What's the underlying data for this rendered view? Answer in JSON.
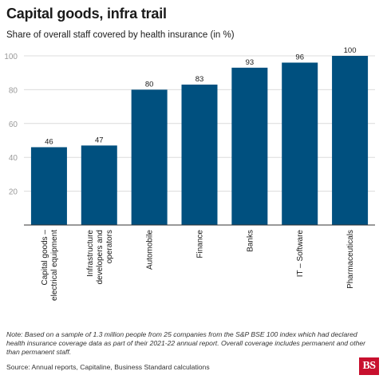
{
  "chart_data": {
    "type": "bar",
    "title": "Capital goods, infra trail",
    "subtitle": "Share of overall staff covered by health insurance (in %)",
    "categories": [
      [
        "Capital goods –",
        "electrical equipment"
      ],
      [
        "Infrastructure",
        "developers and",
        "operators"
      ],
      [
        "Automobile"
      ],
      [
        "Finance"
      ],
      [
        "Banks"
      ],
      [
        "IT – Software"
      ],
      [
        "Pharmaceuticals"
      ]
    ],
    "values": [
      46,
      47,
      80,
      83,
      93,
      96,
      100
    ],
    "data_labels": [
      "46",
      "47",
      "80",
      "83",
      "93",
      "96",
      "100"
    ],
    "yticks": [
      20,
      40,
      60,
      80,
      100
    ],
    "ylim": [
      0,
      100
    ],
    "bar_color": "#00507f",
    "grid": true
  },
  "note": "Note: Based on a sample of 1.3 million people from 25 companies from the S&P BSE 100 index which had declared health insurance coverage data as part of their 2021-22 annual report. Overall coverage includes permanent and other than permanent staff.",
  "source": "Source: Annual reports, Capitaline, Business Standard calculations",
  "logo_text": "BS"
}
